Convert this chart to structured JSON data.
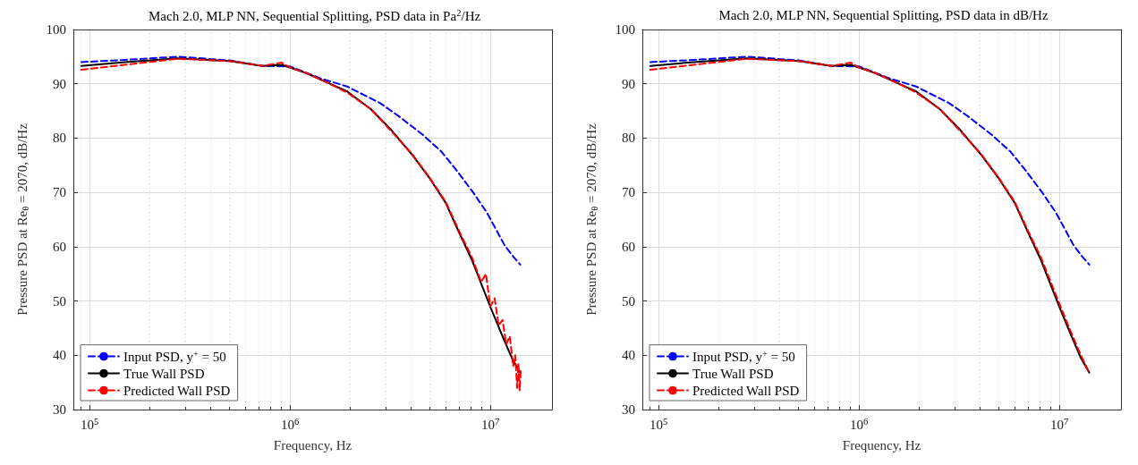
{
  "chart_data": [
    {
      "type": "line",
      "title": "Mach 2.0, MLP NN, Sequential Splitting, PSD data in Pa$^{2}$/Hz",
      "xlabel": "Frequency, Hz",
      "ylabel": "Pressure PSD at Re$_{θ}$ = 2070, dB/Hz",
      "log": "x",
      "grid": true,
      "legend": "bottom left",
      "marker": "none",
      "xlim": [
        83000,
        20300000
      ],
      "ylim": [
        30,
        100
      ],
      "yticks": [
        30,
        40,
        50,
        60,
        70,
        80,
        90,
        100
      ],
      "xticks": [
        {
          "value": 90000,
          "label": null
        },
        {
          "value": 100000,
          "label": "10$^{5}$"
        },
        {
          "value": 200000,
          "label": null
        },
        {
          "value": 300000,
          "label": null
        },
        {
          "value": 400000,
          "label": null
        },
        {
          "value": 500000,
          "label": null
        },
        {
          "value": 600000,
          "label": null
        },
        {
          "value": 700000,
          "label": null
        },
        {
          "value": 800000,
          "label": null
        },
        {
          "value": 900000,
          "label": null
        },
        {
          "value": 1000000,
          "label": "10$^{6}$"
        },
        {
          "value": 2000000,
          "label": null
        },
        {
          "value": 3000000,
          "label": null
        },
        {
          "value": 4000000,
          "label": null
        },
        {
          "value": 5000000,
          "label": null
        },
        {
          "value": 6000000,
          "label": null
        },
        {
          "value": 7000000,
          "label": null
        },
        {
          "value": 8000000,
          "label": null
        },
        {
          "value": 9000000,
          "label": null
        },
        {
          "value": 10000000,
          "label": "10$^{7}$"
        }
      ],
      "series": [
        {
          "name": "Input PSD, y$^{+}$ = 50",
          "color": "#0000ff",
          "line_style": "dashed",
          "x": [
            91000,
            150000,
            276000,
            500000,
            730000,
            1000000,
            1420000,
            1930000,
            2830000,
            3500000,
            4600000,
            5700000,
            6800000,
            8200000,
            9600000,
            11800000,
            13000000,
            14100000
          ],
          "values": [
            94.0,
            94.4,
            95.0,
            94.3,
            93.3,
            93.2,
            91.0,
            89.5,
            86.4,
            84.0,
            80.6,
            77.5,
            74.0,
            70.0,
            66.3,
            60.2,
            58.2,
            56.7
          ]
        },
        {
          "name": "True Wall PSD",
          "color": "#000000",
          "line_style": "solid",
          "x": [
            91000,
            150000,
            276000,
            500000,
            730000,
            910000,
            1000000,
            1200000,
            1420000,
            1930000,
            2540000,
            3200000,
            4100000,
            5000000,
            6000000,
            7000000,
            8100000,
            10000000,
            11500000,
            12800000,
            14100000
          ],
          "values": [
            93.3,
            94.0,
            94.7,
            94.2,
            93.3,
            93.5,
            93.0,
            92.0,
            90.8,
            88.6,
            85.3,
            81.5,
            76.8,
            72.5,
            68.0,
            62.5,
            57.5,
            48.9,
            43.5,
            39.5,
            36.8
          ]
        },
        {
          "name": "Predicted Wall PSD",
          "color": "#ff0000",
          "line_style": "dashed",
          "x": [
            91000,
            150000,
            276000,
            500000,
            730000,
            910000,
            1000000,
            1200000,
            1420000,
            1930000,
            2540000,
            3200000,
            4100000,
            5000000,
            6000000,
            7000000,
            8100000,
            9000000,
            9500000,
            10000000,
            10500000,
            11000000,
            11500000,
            12000000,
            12500000,
            13000000,
            13300000,
            13600000,
            13800000,
            14000000,
            14200000
          ],
          "values": [
            92.6,
            93.5,
            94.6,
            94.2,
            93.3,
            93.9,
            93.0,
            92.0,
            90.8,
            88.4,
            85.3,
            81.3,
            76.9,
            72.6,
            68.2,
            62.8,
            58.0,
            53.5,
            55.0,
            49.0,
            50.5,
            45.5,
            46.5,
            42.0,
            43.5,
            38.0,
            40.0,
            34.0,
            38.5,
            33.5,
            37.5
          ]
        }
      ]
    },
    {
      "type": "line",
      "title": "Mach 2.0, MLP NN, Sequential Splitting, PSD data in dB/Hz",
      "xlabel": "Frequency, Hz",
      "ylabel": "Pressure PSD at Re$_{θ}$ = 2070, dB/Hz",
      "log": "x",
      "grid": true,
      "legend": "bottom left",
      "marker": "none",
      "xlim": [
        83000,
        20300000
      ],
      "ylim": [
        30,
        100
      ],
      "yticks": [
        30,
        40,
        50,
        60,
        70,
        80,
        90,
        100
      ],
      "xticks": [
        {
          "value": 90000,
          "label": null
        },
        {
          "value": 100000,
          "label": "10$^{5}$"
        },
        {
          "value": 200000,
          "label": null
        },
        {
          "value": 300000,
          "label": null
        },
        {
          "value": 400000,
          "label": null
        },
        {
          "value": 500000,
          "label": null
        },
        {
          "value": 600000,
          "label": null
        },
        {
          "value": 700000,
          "label": null
        },
        {
          "value": 800000,
          "label": null
        },
        {
          "value": 900000,
          "label": null
        },
        {
          "value": 1000000,
          "label": "10$^{6}$"
        },
        {
          "value": 2000000,
          "label": null
        },
        {
          "value": 3000000,
          "label": null
        },
        {
          "value": 4000000,
          "label": null
        },
        {
          "value": 5000000,
          "label": null
        },
        {
          "value": 6000000,
          "label": null
        },
        {
          "value": 7000000,
          "label": null
        },
        {
          "value": 8000000,
          "label": null
        },
        {
          "value": 9000000,
          "label": null
        },
        {
          "value": 10000000,
          "label": "10$^{7}$"
        }
      ],
      "series": [
        {
          "name": "Input PSD, y$^{+}$ = 50",
          "color": "#0000ff",
          "line_style": "dashed",
          "x": [
            91000,
            150000,
            276000,
            500000,
            730000,
            1000000,
            1420000,
            1930000,
            2830000,
            3500000,
            4600000,
            5700000,
            6800000,
            8200000,
            9600000,
            11800000,
            13000000,
            14100000
          ],
          "values": [
            94.0,
            94.4,
            95.0,
            94.3,
            93.3,
            93.2,
            91.0,
            89.5,
            86.4,
            84.0,
            80.6,
            77.5,
            74.0,
            70.0,
            66.3,
            60.2,
            58.2,
            56.7
          ]
        },
        {
          "name": "True Wall PSD",
          "color": "#000000",
          "line_style": "solid",
          "x": [
            91000,
            150000,
            276000,
            500000,
            730000,
            910000,
            1000000,
            1200000,
            1420000,
            1930000,
            2540000,
            3200000,
            4100000,
            5000000,
            6000000,
            7000000,
            8100000,
            10000000,
            11500000,
            12800000,
            14100000
          ],
          "values": [
            93.3,
            94.0,
            94.7,
            94.2,
            93.3,
            93.5,
            93.0,
            92.0,
            90.8,
            88.6,
            85.3,
            81.5,
            76.8,
            72.5,
            68.0,
            62.5,
            57.5,
            48.9,
            43.5,
            39.5,
            36.8
          ]
        },
        {
          "name": "Predicted Wall PSD",
          "color": "#ff0000",
          "line_style": "dashed",
          "x": [
            91000,
            150000,
            276000,
            500000,
            730000,
            910000,
            1000000,
            1200000,
            1420000,
            1930000,
            2540000,
            3200000,
            4100000,
            5000000,
            6000000,
            7000000,
            8100000,
            10000000,
            11500000,
            12800000,
            14100000
          ],
          "values": [
            92.6,
            93.5,
            94.6,
            94.2,
            93.3,
            93.9,
            93.0,
            92.0,
            90.8,
            88.4,
            85.3,
            81.3,
            76.9,
            72.6,
            68.2,
            62.8,
            58.0,
            49.5,
            44.0,
            40.0,
            36.8
          ]
        }
      ]
    }
  ]
}
